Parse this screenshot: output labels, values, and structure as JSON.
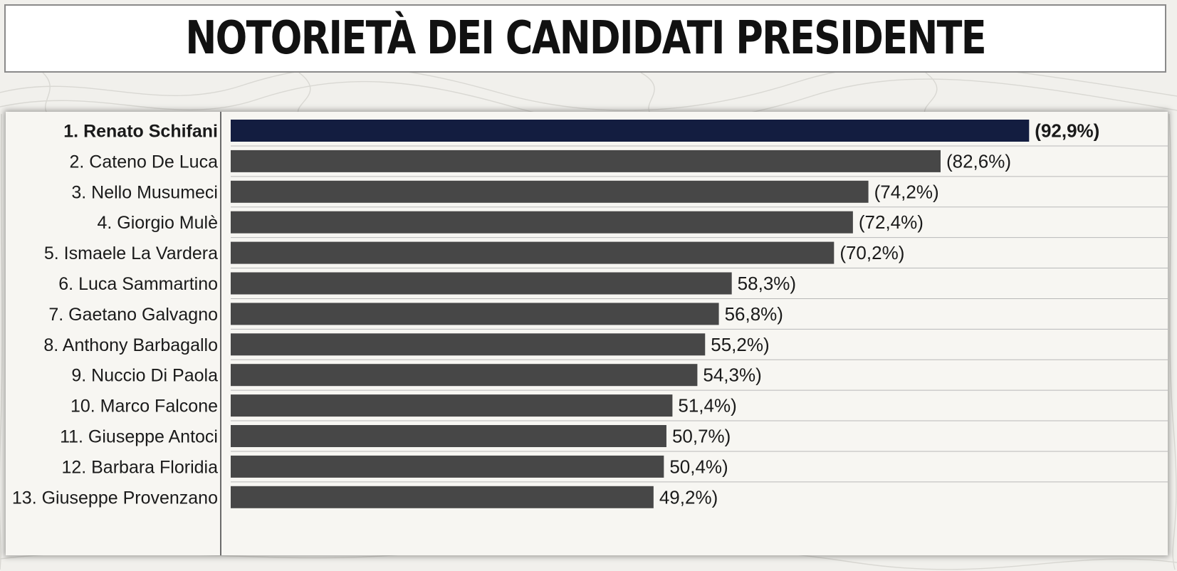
{
  "colors": {
    "background": "#f1f0ec",
    "panel": "#f7f6f2",
    "highlight_bar": "#131d40",
    "bar": "#474747",
    "divider": "#b8b8b8",
    "axis": "#6b6b6b"
  },
  "chart_data": {
    "type": "bar",
    "orientation": "horizontal",
    "title": "NOTORIETÀ DEI CANDIDATI PRESIDENTE",
    "xlim": [
      0,
      100
    ],
    "grid": false,
    "highlighted_index": 0,
    "categories": [
      "1. Renato Schifani",
      "2. Cateno De Luca",
      "3. Nello Musumeci",
      "4. Giorgio Mulè",
      "5. Ismaele La Vardera",
      "6. Luca Sammartino",
      "7. Gaetano Galvagno",
      "8. Anthony Barbagallo",
      "9. Nuccio Di Paola",
      "10. Marco Falcone",
      "11. Giuseppe Antoci",
      "12. Barbara Floridia",
      "13. Giuseppe Provenzano"
    ],
    "values": [
      92.9,
      82.6,
      74.2,
      72.4,
      70.2,
      58.3,
      56.8,
      55.2,
      54.3,
      51.4,
      50.7,
      50.4,
      49.2
    ],
    "value_labels": [
      "(92,9%)",
      "(82,6%)",
      "(74,2%)",
      "(72,4%)",
      "(70,2%)",
      "58,3%)",
      "56,8%)",
      "55,2%)",
      "54,3%)",
      "51,4%)",
      "50,7%)",
      "50,4%)",
      "49,2%)"
    ]
  }
}
